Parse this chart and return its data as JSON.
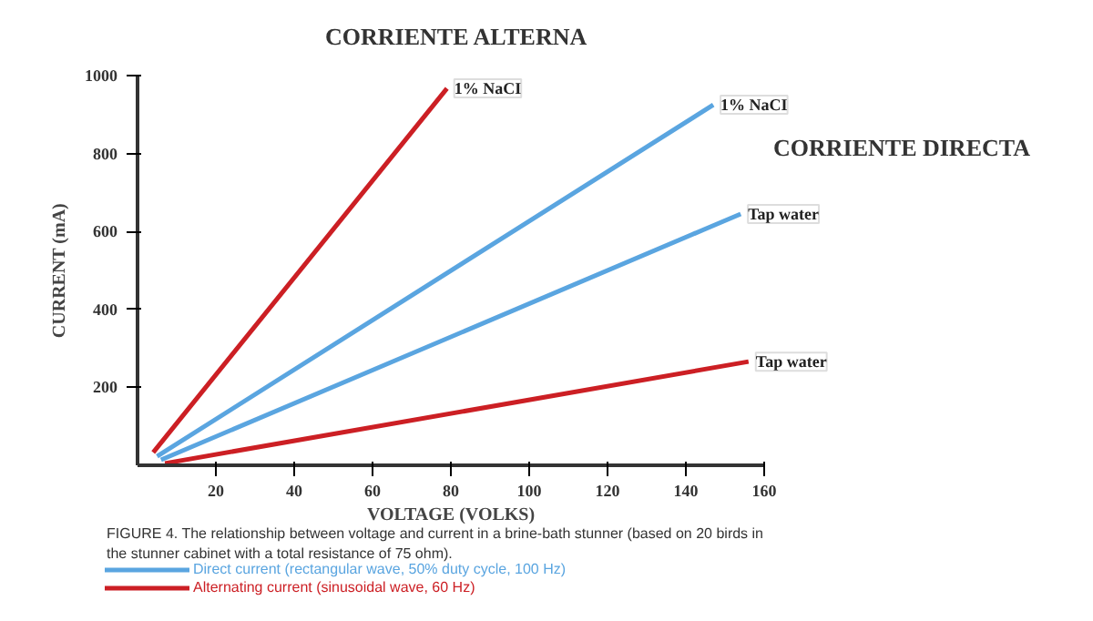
{
  "chart_data": {
    "type": "line",
    "title": "CORRIENTE ALTERNA",
    "xlabel": "VOLTAGE (VOLKS)",
    "ylabel": "CURRENT (mA)",
    "xlim": [
      0,
      160
    ],
    "ylim": [
      0,
      1000
    ],
    "xticks": [
      20,
      40,
      60,
      80,
      100,
      120,
      140,
      160
    ],
    "yticks": [
      200,
      400,
      600,
      800,
      1000
    ],
    "grid": false,
    "legend": "bottom",
    "marker": "none",
    "line_style": "solid",
    "series": [
      {
        "name": "Direct current (rectangular wave, 50% duty cycle, 100 Hz)",
        "color": "#5aa5e0",
        "x": [
          5,
          147,
          null,
          6,
          154
        ],
        "values": [
          23,
          925,
          null,
          14,
          645
        ]
      },
      {
        "name": "Alternating current (sinusoidal wave, 60 Hz)",
        "color": "#cc1f24",
        "x": [
          4,
          79,
          null,
          7,
          156
        ],
        "values": [
          33,
          967,
          null,
          5,
          266
        ]
      }
    ],
    "annotations": [
      {
        "text": "1% NaCI",
        "x": 79,
        "y": 967
      },
      {
        "text": "1% NaCI",
        "x": 147,
        "y": 925
      },
      {
        "text": "Tap water",
        "x": 154,
        "y": 645
      },
      {
        "text": "Tap water",
        "x": 156,
        "y": 266
      },
      "CORRIENTE DIRECTA",
      "FIGURE 4. The relationship between voltage and current in a brine-bath stunner (based on 20 birds in\nthe stunner cabinet with a total resistance of 75 ohm)."
    ]
  }
}
